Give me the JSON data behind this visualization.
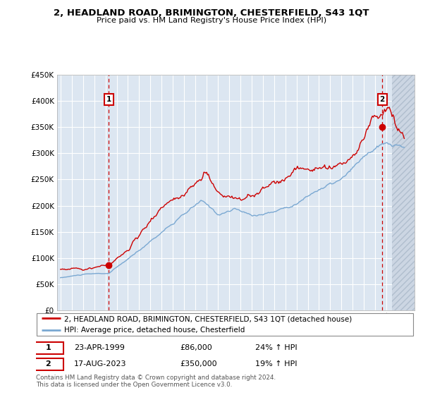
{
  "title": "2, HEADLAND ROAD, BRIMINGTON, CHESTERFIELD, S43 1QT",
  "subtitle": "Price paid vs. HM Land Registry's House Price Index (HPI)",
  "property_label": "2, HEADLAND ROAD, BRIMINGTON, CHESTERFIELD, S43 1QT (detached house)",
  "hpi_label": "HPI: Average price, detached house, Chesterfield",
  "purchase1_date": "23-APR-1999",
  "purchase1_price": 86000,
  "purchase1_hpi": "24% ↑ HPI",
  "purchase2_date": "17-AUG-2023",
  "purchase2_price": 350000,
  "purchase2_hpi": "19% ↑ HPI",
  "footer": "Contains HM Land Registry data © Crown copyright and database right 2024.\nThis data is licensed under the Open Government Licence v3.0.",
  "line_color_property": "#cc0000",
  "line_color_hpi": "#7aa8d2",
  "bg_color": "#dce6f1",
  "hatch_color": "#b0bece",
  "grid_color": "#ffffff",
  "vline_color": "#cc0000",
  "ylim": [
    0,
    450000
  ],
  "yticks": [
    0,
    50000,
    100000,
    150000,
    200000,
    250000,
    300000,
    350000,
    400000,
    450000
  ],
  "xlim_start": 1994.7,
  "xlim_end": 2026.5,
  "purchase1_x": 1999.29,
  "purchase2_x": 2023.63
}
